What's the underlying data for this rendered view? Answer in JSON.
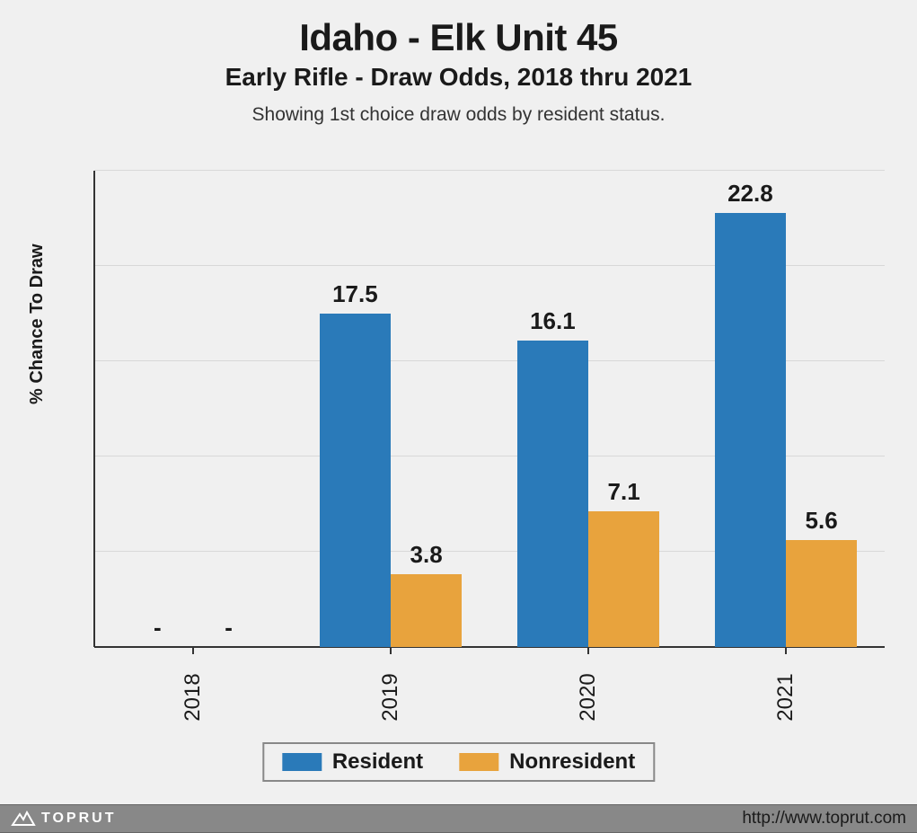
{
  "title": "Idaho - Elk Unit 45",
  "subtitle": "Early Rifle - Draw Odds, 2018 thru 2021",
  "caption": "Showing 1st choice draw odds by resident status.",
  "ylabel": "% Chance To Draw",
  "chart": {
    "type": "bar",
    "categories": [
      "2018",
      "2019",
      "2020",
      "2021"
    ],
    "series": [
      {
        "name": "Resident",
        "color": "#2a7ab9",
        "values": [
          null,
          17.5,
          16.1,
          22.8
        ],
        "labels": [
          "-",
          "17.5",
          "16.1",
          "22.8"
        ]
      },
      {
        "name": "Nonresident",
        "color": "#e8a33d",
        "values": [
          null,
          3.8,
          7.1,
          5.6
        ],
        "labels": [
          "-",
          "3.8",
          "7.1",
          "5.6"
        ]
      }
    ],
    "ylim": [
      0,
      25
    ],
    "grid_steps": 5,
    "background_color": "#f0f0f0",
    "grid_color": "#d8d8d8",
    "axis_color": "#333333",
    "bar_group_width": 0.72,
    "title_fontsize": 42,
    "subtitle_fontsize": 28,
    "caption_fontsize": 21,
    "ylabel_fontsize": 20,
    "barlabel_fontsize": 26,
    "xtick_fontsize": 24,
    "legend_fontsize": 24
  },
  "legend": {
    "items": [
      {
        "label": "Resident",
        "color": "#2a7ab9"
      },
      {
        "label": "Nonresident",
        "color": "#e8a33d"
      }
    ],
    "border_color": "#888888"
  },
  "footer": {
    "brand": "TOPRUT",
    "url": "http://www.toprut.com",
    "bg_color": "#888888",
    "url_fontsize": 19
  }
}
